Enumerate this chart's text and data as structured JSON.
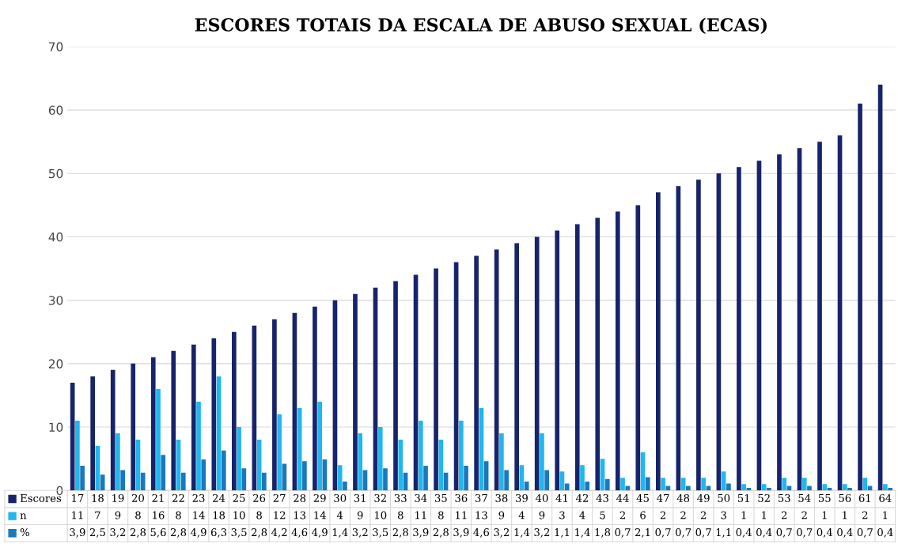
{
  "chart_data": {
    "type": "bar",
    "title": "ESCORES TOTAIS DA ESCALA DE ABUSO SEXUAL (ECAS)",
    "categories": [
      null,
      null,
      null,
      null,
      null,
      null,
      null,
      null,
      null,
      null,
      null,
      null,
      null,
      null,
      null,
      null,
      null,
      null,
      null,
      null,
      null,
      null,
      null,
      null,
      null,
      null,
      null,
      null,
      null,
      null,
      null,
      null,
      null,
      null,
      null,
      null,
      null,
      null,
      null,
      null,
      null
    ],
    "series": [
      {
        "name": "Escores",
        "color": "#17246b",
        "values": [
          17,
          18,
          19,
          20,
          21,
          22,
          23,
          24,
          25,
          26,
          27,
          28,
          29,
          30,
          31,
          32,
          33,
          34,
          35,
          36,
          37,
          38,
          39,
          40,
          41,
          42,
          43,
          44,
          45,
          47,
          48,
          49,
          50,
          51,
          52,
          53,
          54,
          55,
          56,
          61,
          64
        ],
        "value_labels": [
          "17",
          "18",
          "19",
          "20",
          "21",
          "22",
          "23",
          "24",
          "25",
          "26",
          "27",
          "28",
          "29",
          "30",
          "31",
          "32",
          "33",
          "34",
          "35",
          "36",
          "37",
          "38",
          "39",
          "40",
          "41",
          "42",
          "43",
          "44",
          "45",
          "47",
          "48",
          "49",
          "50",
          "51",
          "52",
          "53",
          "54",
          "55",
          "56",
          "61",
          "64"
        ]
      },
      {
        "name": "n",
        "color": "#21b6ee",
        "values": [
          11,
          7,
          9,
          8,
          16,
          8,
          14,
          18,
          10,
          8,
          12,
          13,
          14,
          4,
          9,
          10,
          8,
          11,
          8,
          11,
          13,
          9,
          4,
          9,
          3,
          4,
          5,
          2,
          6,
          2,
          2,
          2,
          3,
          1,
          1,
          2,
          2,
          1,
          1,
          2,
          1
        ],
        "value_labels": [
          "11",
          "7",
          "9",
          "8",
          "16",
          "8",
          "14",
          "18",
          "10",
          "8",
          "12",
          "13",
          "14",
          "4",
          "9",
          "10",
          "8",
          "11",
          "8",
          "11",
          "13",
          "9",
          "4",
          "9",
          "3",
          "4",
          "5",
          "2",
          "6",
          "2",
          "2",
          "2",
          "3",
          "1",
          "1",
          "2",
          "2",
          "1",
          "1",
          "2",
          "1"
        ]
      },
      {
        "name": "%",
        "color": "#1a78bf",
        "values": [
          3.9,
          2.5,
          3.2,
          2.8,
          5.6,
          2.8,
          4.9,
          6.3,
          3.5,
          2.8,
          4.2,
          4.6,
          4.9,
          1.4,
          3.2,
          3.5,
          2.8,
          3.9,
          2.8,
          3.9,
          4.6,
          3.2,
          1.4,
          3.2,
          1.1,
          1.4,
          1.8,
          0.7,
          2.1,
          0.7,
          0.7,
          0.7,
          1.1,
          0.4,
          0.4,
          0.7,
          0.7,
          0.4,
          0.4,
          0.7,
          0.4
        ],
        "value_labels": [
          "3,9",
          "2,5",
          "3,2",
          "2,8",
          "5,6",
          "2,8",
          "4,9",
          "6,3",
          "3,5",
          "2,8",
          "4,2",
          "4,6",
          "4,9",
          "1,4",
          "3,2",
          "3,5",
          "2,8",
          "3,9",
          "2,8",
          "3,9",
          "4,6",
          "3,2",
          "1,4",
          "3,2",
          "1,1",
          "1,4",
          "1,8",
          "0,7",
          "2,1",
          "0,7",
          "0,7",
          "0,7",
          "1,1",
          "0,4",
          "0,4",
          "0,7",
          "0,7",
          "0,4",
          "0,4",
          "0,7",
          "0,4"
        ]
      }
    ],
    "ylim": [
      0,
      70
    ],
    "yticks": [
      0,
      10,
      20,
      30,
      40,
      50,
      60,
      70
    ],
    "grid": "y",
    "legend": "bottom left"
  }
}
